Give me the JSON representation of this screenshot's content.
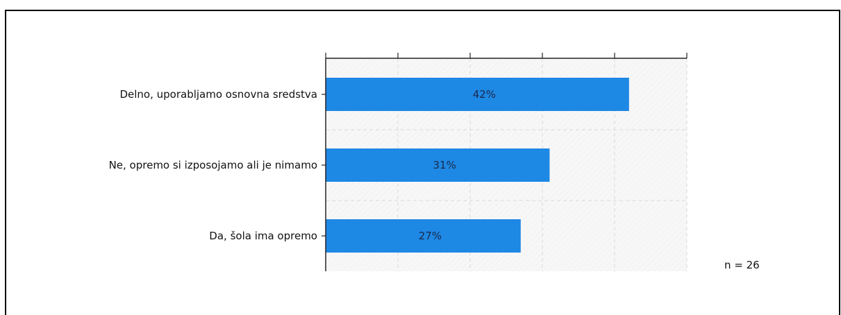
{
  "chart_data": {
    "type": "bar",
    "orientation": "horizontal",
    "categories": [
      "Delno, uporabljamo osnovna sredstva",
      "Ne, opremo si izposojamo ali je nimamo",
      "Da, šola ima opremo"
    ],
    "values": [
      42,
      31,
      27
    ],
    "value_labels": [
      "42%",
      "31%",
      "27%"
    ],
    "xlim": [
      0,
      50
    ],
    "title": "",
    "xlabel": "",
    "ylabel": "",
    "grid": true,
    "bar_color": "#1e88e5",
    "annotation": "n = 26"
  }
}
